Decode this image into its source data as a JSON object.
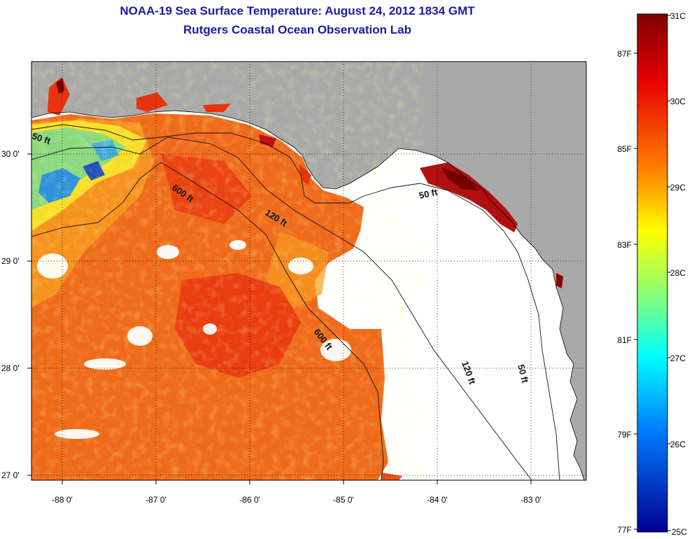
{
  "title": "NOAA-19 Sea Surface Temperature:  August 24, 2012 1834 GMT",
  "subtitle": "Rutgers Coastal Ocean Observation Lab",
  "x_ticks": [
    "-88 0'",
    "-87 0'",
    "-86 0'",
    "-85 0'",
    "-84 0'",
    "-83 0'"
  ],
  "y_ticks": [
    "30 0'",
    "29 0'",
    "28 0'",
    "27 0'"
  ],
  "contour_labels": [
    "50 ft",
    "600 ft",
    "120 ft",
    "50 ft",
    "600 ft",
    "120 ft",
    "50 ft"
  ],
  "colorbar": {
    "celsius": [
      "31C",
      "30C",
      "29C",
      "28C",
      "27C",
      "26C",
      "25C"
    ],
    "fahrenheit": [
      "87F",
      "85F",
      "83F",
      "81F",
      "79F",
      "77F"
    ]
  },
  "colors": {
    "land": "#a9a9a9",
    "no_data": "#ffffff",
    "warm": "#e8501a",
    "hot": "#8b0000",
    "cool": "#2a8fe0",
    "title": "#1a1aa8"
  }
}
